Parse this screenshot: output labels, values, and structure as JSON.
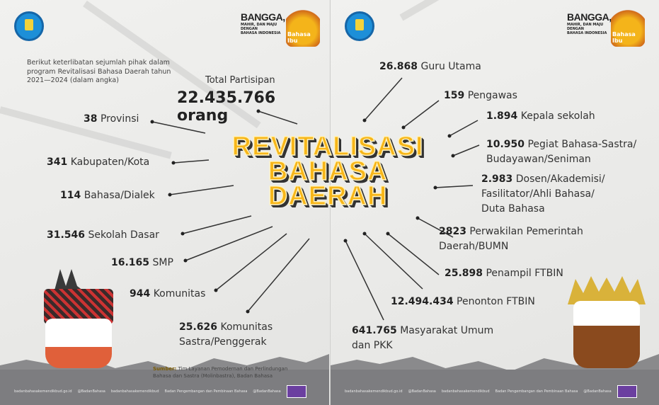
{
  "header": {
    "logo": "Kemendikbud logo",
    "slogan_big": "BANGGA,",
    "slogan_mid": "MAHIR, DAN MAJU",
    "slogan_small": "DENGAN",
    "slogan_bottom": "BAHASA INDONESIA",
    "badge": "Bahasa Ibu"
  },
  "intro": "Berikut keterlibatan sejumlah pihak dalam program Revitalisasi Bahasa Daerah tahun 2021—2024 (dalam angka)",
  "total": {
    "label": "Total Partisipan",
    "value": "22.435.766 orang"
  },
  "title": [
    "REVITALISASI",
    "BAHASA",
    "DAERAH"
  ],
  "left_items": [
    {
      "value": "38",
      "label": "Provinsi"
    },
    {
      "value": "341",
      "label": "Kabupaten/Kota"
    },
    {
      "value": "114",
      "label": "Bahasa/Dialek"
    },
    {
      "value": "31.546",
      "label": "Sekolah Dasar"
    },
    {
      "value": "16.165",
      "label": "SMP"
    },
    {
      "value": "944",
      "label": "Komunitas"
    },
    {
      "value": "25.626",
      "label": "Komunitas",
      "label2": "Sastra/Penggerak"
    }
  ],
  "right_items": [
    {
      "value": "26.868",
      "label": "Guru Utama"
    },
    {
      "value": "159",
      "label": "Pengawas"
    },
    {
      "value": "1.894",
      "label": "Kepala sekolah"
    },
    {
      "value": "10.950",
      "label": "Pegiat Bahasa-Sastra/",
      "label2": "Budayawan/Seniman"
    },
    {
      "value": "2.983",
      "label": "Dosen/Akademisi/",
      "label2": "Fasilitator/Ahli Bahasa/",
      "label3": "Duta Bahasa"
    },
    {
      "value": "2823",
      "label": "Perwakilan Pemerintah",
      "label2": "Daerah/BUMN"
    },
    {
      "value": "25.898",
      "label": "Penampil FTBIN"
    },
    {
      "value": "12.494.434",
      "label": "Penonton FTBIN"
    },
    {
      "value": "641.765",
      "label": "Masyarakat Umum",
      "label2": "dan PKK"
    }
  ],
  "source": {
    "prefix": "Sumber:",
    "text": "Tim Layanan Pemodernan dan Perlindungan",
    "text2": "Bahasa dan Sastra (Molinbastra), Badan Bahasa"
  },
  "footer": [
    "badanbahasakemendikbud.go.id",
    "@BadanBahasa",
    "badanbahasakemendikbud",
    "Badan Pengembangan dan Pembinaan Bahasa",
    "@BadanBahasa"
  ],
  "colors": {
    "title": "#f7b619",
    "background": "#e9e9e7",
    "footer": "#7d7d80",
    "badge": "#6b3fa0"
  }
}
